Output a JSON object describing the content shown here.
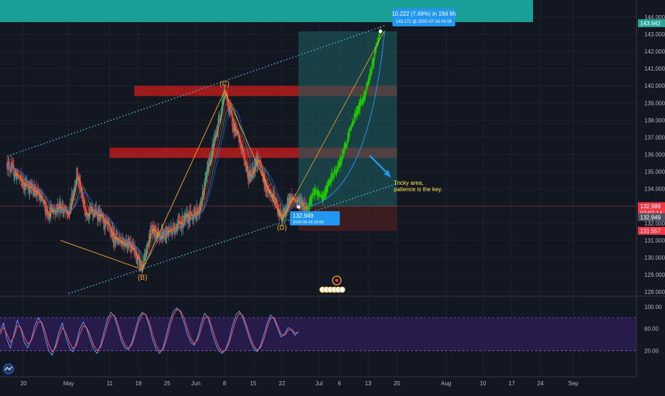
{
  "colors": {
    "background": "#131722",
    "up_candle": "#22ab94",
    "down_candle": "#f23645",
    "projection_up": "#1fc600",
    "banner": "#1a9e98",
    "resistance_zone": "#b71c1c",
    "target_zone": "#1e5c5c",
    "stop_zone": "#4a1f22",
    "channel_line": "#4dd0e1",
    "wave_line": "#f5a623",
    "wave_label": "#f5a623",
    "callout": "#2196f3",
    "note_text": "#ffeb3b",
    "rsi_panel": "#2a1c4e",
    "rsi_line_k": "#5b9cf6",
    "rsi_line_d": "#f7525f"
  },
  "chart_data": [
    {
      "type": "candlestick",
      "title": "",
      "xlabel": "",
      "ylabel": "",
      "ylim": [
        127.9,
        144.1
      ],
      "grid": true,
      "x_ticks": [
        "20",
        "May",
        "11",
        "18",
        "25",
        "Jun",
        "8",
        "15",
        "22",
        "Jul",
        "6",
        "13",
        "20",
        "Aug",
        "10",
        "17",
        "24",
        "Sep"
      ],
      "y_ticks": [
        "144.000",
        "143.000",
        "142.000",
        "141.000",
        "140.000",
        "139.000",
        "138.000",
        "137.000",
        "136.000",
        "135.000",
        "134.000",
        "133.000",
        "132.000",
        "131.000",
        "130.000",
        "129.000",
        "128.000"
      ],
      "price_path": [
        {
          "x": "2020-04-16",
          "y": 135.5
        },
        {
          "x": "2020-04-20",
          "y": 134.3
        },
        {
          "x": "2020-04-23",
          "y": 133.9
        },
        {
          "x": "2020-04-26",
          "y": 132.6
        },
        {
          "x": "2020-04-29",
          "y": 133.0
        },
        {
          "x": "2020-05-01",
          "y": 132.4
        },
        {
          "x": "2020-05-03",
          "y": 134.9
        },
        {
          "x": "2020-05-05",
          "y": 132.7
        },
        {
          "x": "2020-05-08",
          "y": 132.6
        },
        {
          "x": "2020-05-12",
          "y": 131.2
        },
        {
          "x": "2020-05-16",
          "y": 130.8
        },
        {
          "x": "2020-05-19",
          "y": 129.3
        },
        {
          "x": "2020-05-21",
          "y": 131.6
        },
        {
          "x": "2020-05-24",
          "y": 131.3
        },
        {
          "x": "2020-05-27",
          "y": 131.8
        },
        {
          "x": "2020-05-30",
          "y": 132.3
        },
        {
          "x": "2020-06-02",
          "y": 132.8
        },
        {
          "x": "2020-06-04",
          "y": 135.3
        },
        {
          "x": "2020-06-06",
          "y": 137.2
        },
        {
          "x": "2020-06-08",
          "y": 139.7
        },
        {
          "x": "2020-06-10",
          "y": 137.8
        },
        {
          "x": "2020-06-12",
          "y": 136.5
        },
        {
          "x": "2020-06-14",
          "y": 134.6
        },
        {
          "x": "2020-06-16",
          "y": 135.8
        },
        {
          "x": "2020-06-18",
          "y": 134.2
        },
        {
          "x": "2020-06-20",
          "y": 133.4
        },
        {
          "x": "2020-06-22",
          "y": 132.2
        },
        {
          "x": "2020-06-24",
          "y": 133.5
        },
        {
          "x": "2020-06-26",
          "y": 133.3
        },
        {
          "x": "2020-06-28",
          "y": 132.9
        }
      ],
      "projection_path": [
        {
          "x": "2020-06-28",
          "y": 132.9
        },
        {
          "x": "2020-06-30",
          "y": 133.8
        },
        {
          "x": "2020-07-02",
          "y": 133.5
        },
        {
          "x": "2020-07-04",
          "y": 134.6
        },
        {
          "x": "2020-07-06",
          "y": 135.4
        },
        {
          "x": "2020-07-08",
          "y": 137.0
        },
        {
          "x": "2020-07-10",
          "y": 138.4
        },
        {
          "x": "2020-07-12",
          "y": 139.4
        },
        {
          "x": "2020-07-14",
          "y": 141.2
        },
        {
          "x": "2020-07-16",
          "y": 143.2
        }
      ],
      "waves": [
        {
          "label": "(B)",
          "x": "2020-05-19",
          "y": 129.3
        },
        {
          "label": "(C)",
          "x": "2020-06-08",
          "y": 139.7
        },
        {
          "label": "(D)",
          "x": "2020-06-22",
          "y": 132.2
        }
      ],
      "zones": [
        {
          "kind": "resistance",
          "x_start": "2020-05-17",
          "x_end": "2020-07-20",
          "y_low": 139.4,
          "y_high": 140.0
        },
        {
          "kind": "resistance",
          "x_start": "2020-05-11",
          "x_end": "2020-07-20",
          "y_low": 135.8,
          "y_high": 136.4
        },
        {
          "kind": "target",
          "x_start": "2020-06-26",
          "x_end": "2020-07-20",
          "y_low": 132.949,
          "y_high": 143.171
        },
        {
          "kind": "stop",
          "x_start": "2020-06-26",
          "x_end": "2020-07-20",
          "y_low": 131.557,
          "y_high": 132.949
        }
      ],
      "channel": [
        {
          "x1": "2020-04-16",
          "y1": 135.9,
          "x2": "2020-07-17",
          "y2": 143.5
        },
        {
          "x1": "2020-05-01",
          "y1": 127.9,
          "x2": "2020-07-20",
          "y2": 134.3
        }
      ],
      "annotations": {
        "measure": {
          "line1": "10.222 (7.69%) in 19d 8h",
          "line2": "143.171 @ 2020-07-16  00:00"
        },
        "entry": {
          "line1": "132.949",
          "line2": "2020-06-26 16:00"
        },
        "note": {
          "line1": "Tricky area,",
          "line2": "patience is the key."
        }
      },
      "price_tags": [
        {
          "value": "143.642",
          "level": 143.642,
          "color": "#26a69a"
        },
        {
          "value": "132.988",
          "level": 132.988,
          "color": "#f23645"
        },
        {
          "value": "02:07:14",
          "level": 132.6,
          "color": "#f23645"
        },
        {
          "value": "132.949",
          "level": 132.35,
          "color": "#4c525e"
        },
        {
          "value": "131.557",
          "level": 131.557,
          "color": "#f23645"
        }
      ]
    },
    {
      "type": "line",
      "title": "",
      "ylim": [
        5,
        105
      ],
      "y_ticks": [
        "100.00",
        "60.00",
        "20.00"
      ],
      "bands": [
        80,
        20
      ],
      "series": [
        {
          "values": [
            55,
            70,
            40,
            25,
            50,
            75,
            60,
            35,
            25,
            40,
            65,
            80,
            70,
            45,
            20,
            12,
            30,
            55,
            70,
            45,
            25,
            18,
            35,
            60,
            72,
            60,
            40,
            22,
            15,
            30,
            55,
            78,
            90,
            82,
            60,
            38,
            25,
            22,
            35,
            58,
            80,
            90,
            85,
            65,
            40,
            22,
            15,
            25,
            50,
            75,
            92,
            98,
            90,
            72,
            50,
            35,
            30,
            45,
            70,
            88,
            80,
            55,
            35,
            20,
            15,
            22,
            40,
            65,
            85,
            92,
            80,
            60,
            40,
            25,
            18,
            28,
            48,
            70,
            85,
            78,
            60,
            45,
            50,
            62,
            58,
            48,
            55
          ]
        },
        {
          "values": [
            50,
            62,
            50,
            35,
            45,
            65,
            62,
            45,
            32,
            38,
            55,
            72,
            72,
            55,
            32,
            18,
            25,
            45,
            62,
            52,
            35,
            24,
            30,
            50,
            65,
            62,
            48,
            30,
            20,
            26,
            45,
            68,
            84,
            84,
            68,
            46,
            31,
            24,
            30,
            50,
            72,
            86,
            86,
            72,
            50,
            30,
            19,
            22,
            40,
            65,
            85,
            95,
            93,
            80,
            60,
            42,
            33,
            40,
            60,
            80,
            82,
            64,
            44,
            27,
            18,
            20,
            33,
            55,
            76,
            88,
            84,
            67,
            47,
            31,
            21,
            25,
            40,
            62,
            79,
            80,
            66,
            50,
            48,
            57,
            59,
            52,
            53
          ]
        }
      ]
    }
  ],
  "toolbar": {
    "logo_icon": "tradingview-logo-icon"
  }
}
